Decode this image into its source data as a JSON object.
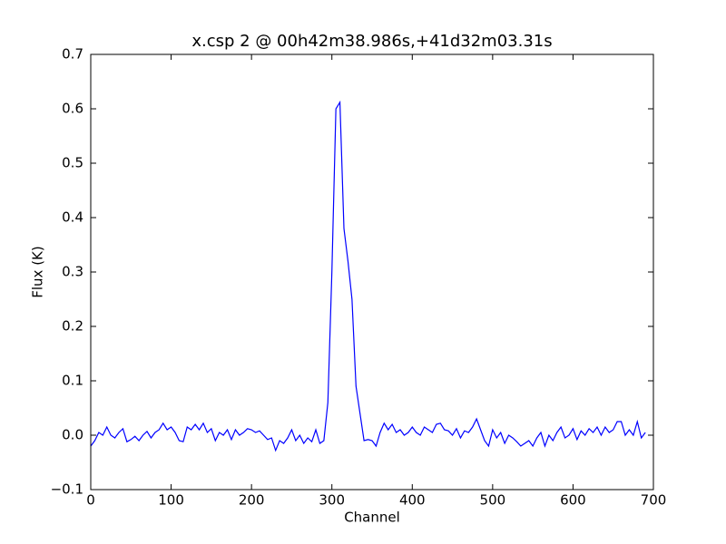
{
  "chart_data": {
    "type": "line",
    "title": "x.csp 2 @ 00h42m38.986s,+41d32m03.31s",
    "xlabel": "Channel",
    "ylabel": "Flux (K)",
    "color": "#0000ff",
    "x": [
      0,
      5,
      10,
      15,
      20,
      25,
      30,
      35,
      40,
      45,
      50,
      55,
      60,
      65,
      70,
      75,
      80,
      85,
      90,
      95,
      100,
      105,
      110,
      115,
      120,
      125,
      130,
      135,
      140,
      145,
      150,
      155,
      160,
      165,
      170,
      175,
      180,
      185,
      190,
      195,
      200,
      205,
      210,
      215,
      220,
      225,
      230,
      235,
      240,
      245,
      250,
      255,
      260,
      265,
      270,
      275,
      280,
      285,
      290,
      295,
      300,
      305,
      310,
      315,
      320,
      325,
      330,
      335,
      340,
      345,
      350,
      355,
      360,
      365,
      370,
      375,
      380,
      385,
      390,
      395,
      400,
      405,
      410,
      415,
      420,
      425,
      430,
      435,
      440,
      445,
      450,
      455,
      460,
      465,
      470,
      475,
      480,
      485,
      490,
      495,
      500,
      505,
      510,
      515,
      520,
      525,
      530,
      535,
      540,
      545,
      550,
      555,
      560,
      565,
      570,
      575,
      580,
      585,
      590,
      595,
      600,
      605,
      610,
      615,
      620,
      625,
      630,
      635,
      640,
      645,
      650,
      655,
      660,
      665,
      670,
      675,
      680,
      685,
      690
    ],
    "values": [
      -0.02,
      -0.01,
      0.005,
      0.0,
      0.015,
      0.0,
      -0.005,
      0.005,
      0.012,
      -0.012,
      -0.008,
      -0.002,
      -0.01,
      0.0,
      0.007,
      -0.005,
      0.005,
      0.01,
      0.022,
      0.01,
      0.015,
      0.005,
      -0.01,
      -0.012,
      0.015,
      0.01,
      0.02,
      0.01,
      0.022,
      0.005,
      0.012,
      -0.01,
      0.005,
      0.0,
      0.01,
      -0.008,
      0.01,
      0.0,
      0.005,
      0.012,
      0.01,
      0.005,
      0.008,
      0.0,
      -0.008,
      -0.005,
      -0.028,
      -0.01,
      -0.015,
      -0.005,
      0.01,
      -0.01,
      0.0,
      -0.015,
      -0.005,
      -0.012,
      0.01,
      -0.015,
      -0.01,
      0.06,
      0.3,
      0.6,
      0.612,
      0.38,
      0.32,
      0.25,
      0.09,
      0.04,
      -0.01,
      -0.008,
      -0.01,
      -0.02,
      0.005,
      0.022,
      0.01,
      0.02,
      0.005,
      0.01,
      0.0,
      0.005,
      0.015,
      0.005,
      0.0,
      0.015,
      0.01,
      0.005,
      0.02,
      0.022,
      0.01,
      0.008,
      0.0,
      0.012,
      -0.005,
      0.008,
      0.005,
      0.015,
      0.03,
      0.01,
      -0.01,
      -0.02,
      0.01,
      -0.005,
      0.005,
      -0.015,
      0.0,
      -0.005,
      -0.012,
      -0.02,
      -0.015,
      -0.01,
      -0.02,
      -0.005,
      0.005,
      -0.02,
      0.0,
      -0.01,
      0.005,
      0.015,
      -0.005,
      0.0,
      0.012,
      -0.008,
      0.008,
      0.0,
      0.012,
      0.005,
      0.015,
      0.0,
      0.015,
      0.005,
      0.01,
      0.025,
      0.025,
      0.0,
      0.01,
      0.0,
      0.025,
      -0.005,
      0.005
    ],
    "xlim": [
      0,
      700
    ],
    "xticks": [
      0,
      100,
      200,
      300,
      400,
      500,
      600,
      700
    ],
    "ylim": [
      -0.1,
      0.7
    ],
    "yticks": [
      {
        "value": -0.1,
        "label": "−0.1"
      },
      {
        "value": 0,
        "label": "0.0"
      },
      0.1,
      0.2,
      0.3,
      0.4,
      0.5,
      0.6,
      0.7
    ]
  }
}
